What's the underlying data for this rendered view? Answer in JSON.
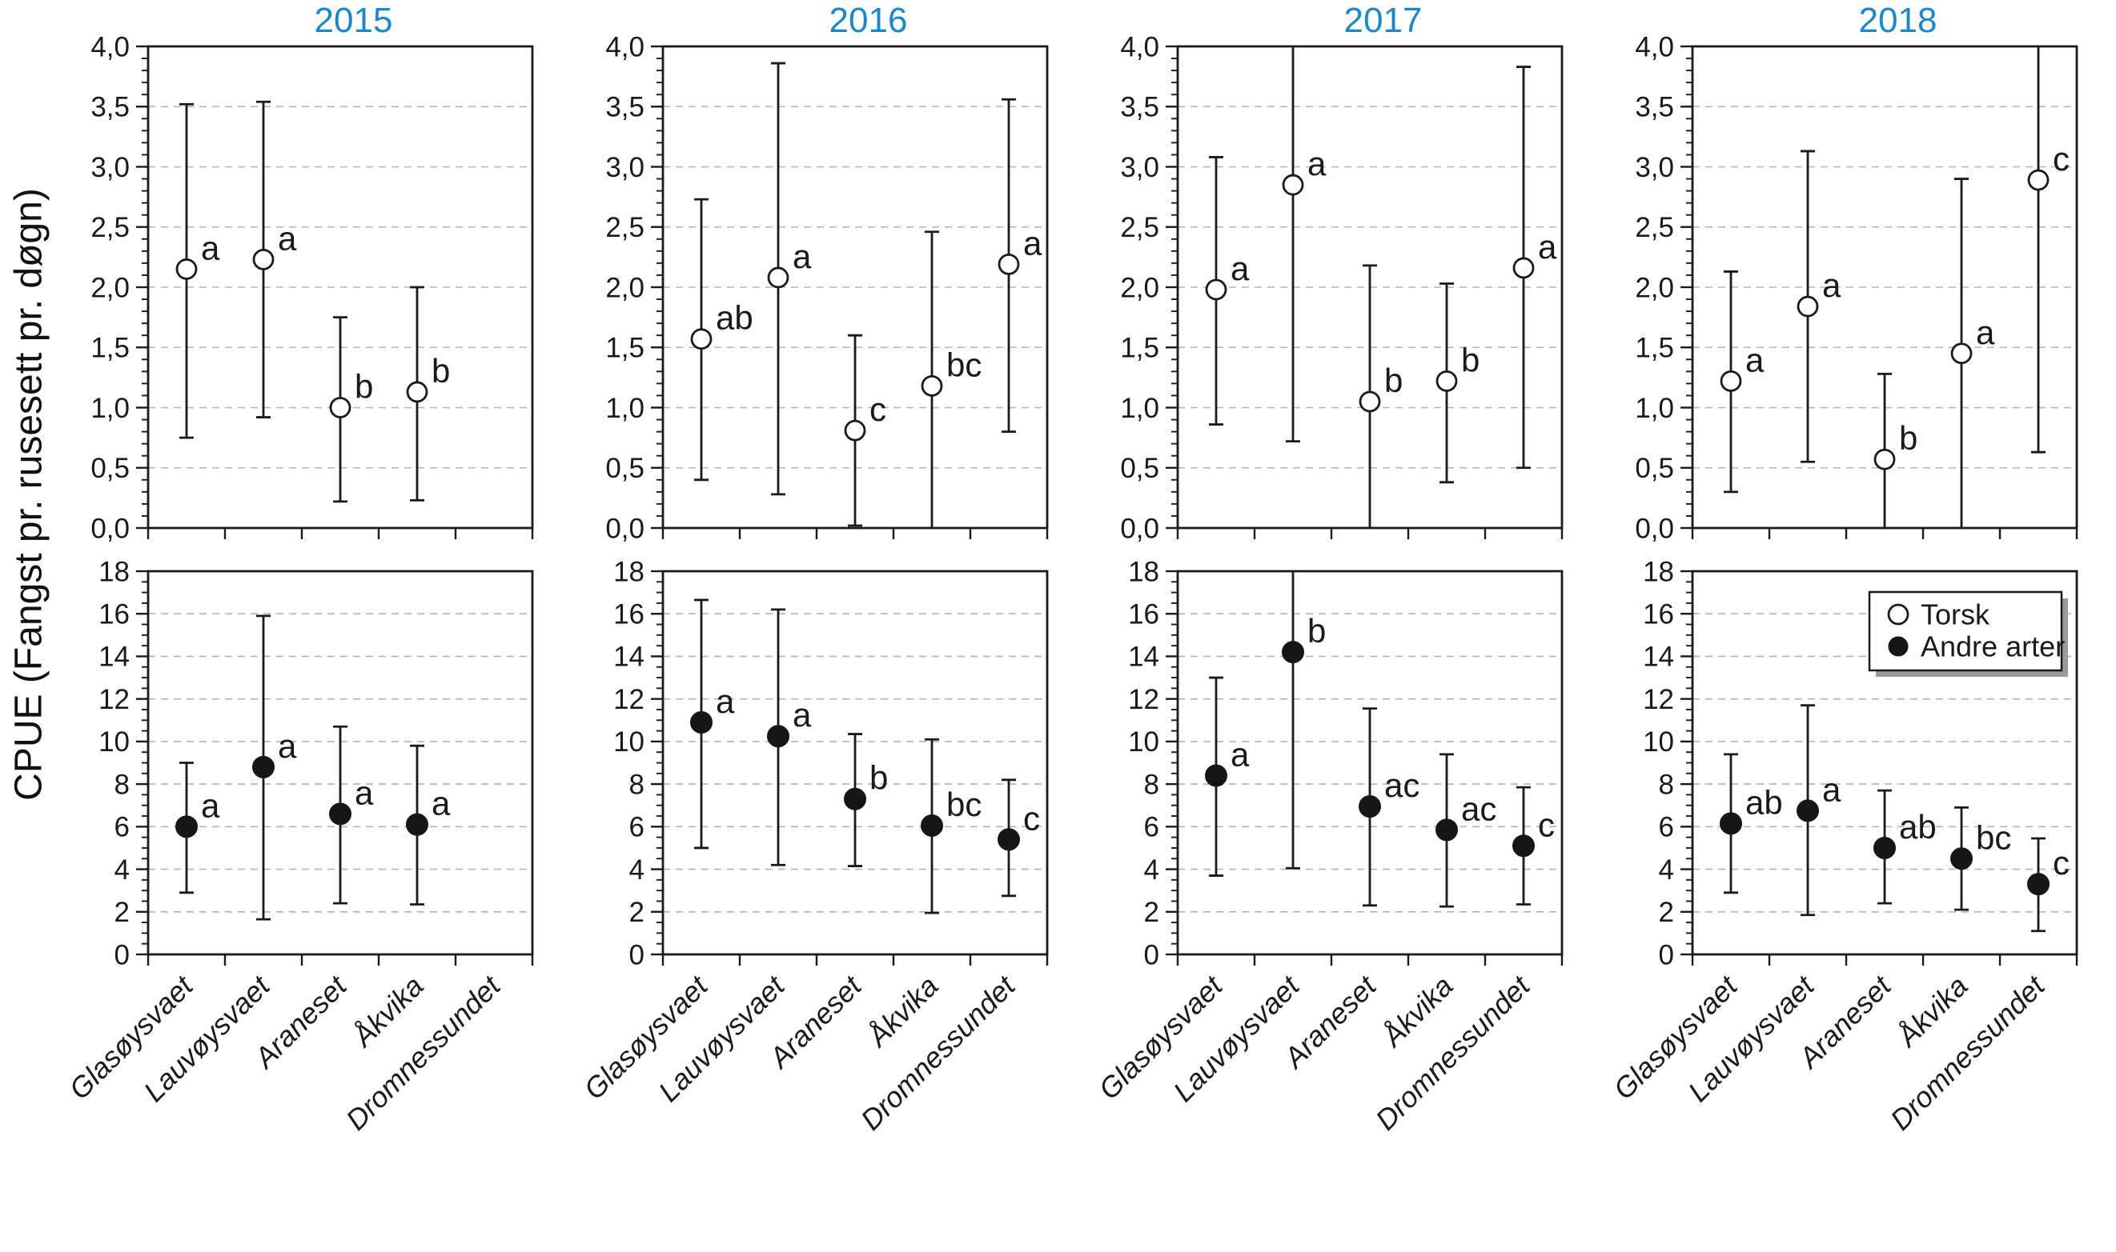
{
  "figure": {
    "ylabel": "CPUE (Fangst pr. rusesett pr. døgn)",
    "years": [
      "2015",
      "2016",
      "2017",
      "2018"
    ],
    "categories": [
      "Glasøysvaet",
      "Lauvøysvaet",
      "Araneset",
      "Åkvika",
      "Dromnessundet"
    ],
    "title_color": "#1b87c9",
    "axis_color": "#1a1a1a",
    "gridline_color": "#b3b3b3"
  },
  "legend": {
    "items": [
      {
        "label": "Torsk",
        "marker": "open-circle"
      },
      {
        "label": "Andre arter",
        "marker": "filled-circle"
      }
    ]
  },
  "chart_data": [
    {
      "type": "scatter",
      "year": "2015",
      "series": "Torsk",
      "row": "torsk",
      "ylim": [
        0,
        4
      ],
      "minor_step": 0.1,
      "minor_per_major": 5,
      "grid": true,
      "yticks": {
        "values": [
          0,
          0.5,
          1,
          1.5,
          2,
          2.5,
          3,
          3.5,
          4
        ],
        "labels": [
          "0,0",
          "0,5",
          "1,0",
          "1,5",
          "2,0",
          "2,5",
          "3,0",
          "3,5",
          "4,0"
        ]
      },
      "points": [
        {
          "cat": "Glasøysvaet",
          "y": 2.15,
          "lo": 0.75,
          "hi": 3.52,
          "sig": "a"
        },
        {
          "cat": "Lauvøysvaet",
          "y": 2.23,
          "lo": 0.92,
          "hi": 3.54,
          "sig": "a"
        },
        {
          "cat": "Araneset",
          "y": 1.0,
          "lo": 0.22,
          "hi": 1.75,
          "sig": "b"
        },
        {
          "cat": "Åkvika",
          "y": 1.13,
          "lo": 0.23,
          "hi": 2.0,
          "sig": "b"
        }
      ]
    },
    {
      "type": "scatter",
      "year": "2016",
      "series": "Torsk",
      "row": "torsk",
      "ylim": [
        0,
        4
      ],
      "minor_step": 0.1,
      "minor_per_major": 5,
      "grid": true,
      "yticks": {
        "values": [
          0,
          0.5,
          1,
          1.5,
          2,
          2.5,
          3,
          3.5,
          4
        ],
        "labels": [
          "0,0",
          "0,5",
          "1,0",
          "1,5",
          "2,0",
          "2,5",
          "3,0",
          "3,5",
          "4,0"
        ]
      },
      "points": [
        {
          "cat": "Glasøysvaet",
          "y": 1.57,
          "lo": 0.4,
          "hi": 2.73,
          "sig": "ab"
        },
        {
          "cat": "Lauvøysvaet",
          "y": 2.08,
          "lo": 0.28,
          "hi": 3.86,
          "sig": "a"
        },
        {
          "cat": "Araneset",
          "y": 0.81,
          "lo": 0.02,
          "hi": 1.6,
          "sig": "c"
        },
        {
          "cat": "Åkvika",
          "y": 1.18,
          "lo": 0,
          "hi": 2.46,
          "sig": "bc",
          "clip_lo": true
        },
        {
          "cat": "Dromnessundet",
          "y": 2.19,
          "lo": 0.8,
          "hi": 3.56,
          "sig": "a"
        }
      ]
    },
    {
      "type": "scatter",
      "year": "2017",
      "series": "Torsk",
      "row": "torsk",
      "ylim": [
        0,
        4
      ],
      "minor_step": 0.1,
      "minor_per_major": 5,
      "grid": true,
      "yticks": {
        "values": [
          0,
          0.5,
          1,
          1.5,
          2,
          2.5,
          3,
          3.5,
          4
        ],
        "labels": [
          "0,0",
          "0,5",
          "1,0",
          "1,5",
          "2,0",
          "2,5",
          "3,0",
          "3,5",
          "4,0"
        ]
      },
      "points": [
        {
          "cat": "Glasøysvaet",
          "y": 1.98,
          "lo": 0.86,
          "hi": 3.08,
          "sig": "a"
        },
        {
          "cat": "Lauvøysvaet",
          "y": 2.85,
          "lo": 0.72,
          "hi": 4.0,
          "sig": "a",
          "clip_hi": true
        },
        {
          "cat": "Araneset",
          "y": 1.05,
          "lo": 0,
          "hi": 2.18,
          "sig": "b",
          "clip_lo": true
        },
        {
          "cat": "Åkvika",
          "y": 1.22,
          "lo": 0.38,
          "hi": 2.03,
          "sig": "b"
        },
        {
          "cat": "Dromnessundet",
          "y": 2.16,
          "lo": 0.5,
          "hi": 3.83,
          "sig": "a"
        }
      ]
    },
    {
      "type": "scatter",
      "year": "2018",
      "series": "Torsk",
      "row": "torsk",
      "ylim": [
        0,
        4
      ],
      "minor_step": 0.1,
      "minor_per_major": 5,
      "grid": true,
      "yticks": {
        "values": [
          0,
          0.5,
          1,
          1.5,
          2,
          2.5,
          3,
          3.5,
          4
        ],
        "labels": [
          "0,0",
          "0,5",
          "1,0",
          "1,5",
          "2,0",
          "2,5",
          "3,0",
          "3,5",
          "4,0"
        ]
      },
      "points": [
        {
          "cat": "Glasøysvaet",
          "y": 1.22,
          "lo": 0.3,
          "hi": 2.13,
          "sig": "a"
        },
        {
          "cat": "Lauvøysvaet",
          "y": 1.84,
          "lo": 0.55,
          "hi": 3.13,
          "sig": "a"
        },
        {
          "cat": "Araneset",
          "y": 0.57,
          "lo": 0,
          "hi": 1.28,
          "sig": "b",
          "clip_lo": true
        },
        {
          "cat": "Åkvika",
          "y": 1.45,
          "lo": 0,
          "hi": 2.9,
          "sig": "a",
          "clip_lo": true
        },
        {
          "cat": "Dromnessundet",
          "y": 2.89,
          "lo": 0.63,
          "hi": 4.0,
          "sig": "c",
          "clip_hi": true
        }
      ]
    },
    {
      "type": "scatter",
      "year": "2015",
      "series": "Andre arter",
      "row": "andre",
      "ylim": [
        0,
        18
      ],
      "minor_step": 0.5,
      "minor_per_major": 4,
      "grid": true,
      "yticks": {
        "values": [
          0,
          2,
          4,
          6,
          8,
          10,
          12,
          14,
          16,
          18
        ],
        "labels": [
          "0",
          "2",
          "4",
          "6",
          "8",
          "10",
          "12",
          "14",
          "16",
          "18"
        ]
      },
      "points": [
        {
          "cat": "Glasøysvaet",
          "y": 6.0,
          "lo": 2.9,
          "hi": 9.0,
          "sig": "a"
        },
        {
          "cat": "Lauvøysvaet",
          "y": 8.8,
          "lo": 1.65,
          "hi": 15.9,
          "sig": "a"
        },
        {
          "cat": "Araneset",
          "y": 6.6,
          "lo": 2.4,
          "hi": 10.7,
          "sig": "a"
        },
        {
          "cat": "Åkvika",
          "y": 6.1,
          "lo": 2.35,
          "hi": 9.8,
          "sig": "a"
        }
      ]
    },
    {
      "type": "scatter",
      "year": "2016",
      "series": "Andre arter",
      "row": "andre",
      "ylim": [
        0,
        18
      ],
      "minor_step": 0.5,
      "minor_per_major": 4,
      "grid": true,
      "yticks": {
        "values": [
          0,
          2,
          4,
          6,
          8,
          10,
          12,
          14,
          16,
          18
        ],
        "labels": [
          "0",
          "2",
          "4",
          "6",
          "8",
          "10",
          "12",
          "14",
          "16",
          "18"
        ]
      },
      "points": [
        {
          "cat": "Glasøysvaet",
          "y": 10.9,
          "lo": 5.0,
          "hi": 16.65,
          "sig": "a"
        },
        {
          "cat": "Lauvøysvaet",
          "y": 10.25,
          "lo": 4.2,
          "hi": 16.2,
          "sig": "a"
        },
        {
          "cat": "Araneset",
          "y": 7.3,
          "lo": 4.15,
          "hi": 10.35,
          "sig": "b"
        },
        {
          "cat": "Åkvika",
          "y": 6.05,
          "lo": 1.95,
          "hi": 10.1,
          "sig": "bc"
        },
        {
          "cat": "Dromnessundet",
          "y": 5.4,
          "lo": 2.75,
          "hi": 8.2,
          "sig": "c"
        }
      ]
    },
    {
      "type": "scatter",
      "year": "2017",
      "series": "Andre arter",
      "row": "andre",
      "ylim": [
        0,
        18
      ],
      "minor_step": 0.5,
      "minor_per_major": 4,
      "grid": true,
      "yticks": {
        "values": [
          0,
          2,
          4,
          6,
          8,
          10,
          12,
          14,
          16,
          18
        ],
        "labels": [
          "0",
          "2",
          "4",
          "6",
          "8",
          "10",
          "12",
          "14",
          "16",
          "18"
        ]
      },
      "points": [
        {
          "cat": "Glasøysvaet",
          "y": 8.4,
          "lo": 3.7,
          "hi": 13.0,
          "sig": "a"
        },
        {
          "cat": "Lauvøysvaet",
          "y": 14.2,
          "lo": 4.05,
          "hi": 18.0,
          "sig": "b",
          "clip_hi": true
        },
        {
          "cat": "Araneset",
          "y": 6.95,
          "lo": 2.3,
          "hi": 11.55,
          "sig": "ac"
        },
        {
          "cat": "Åkvika",
          "y": 5.85,
          "lo": 2.25,
          "hi": 9.4,
          "sig": "ac"
        },
        {
          "cat": "Dromnessundet",
          "y": 5.1,
          "lo": 2.35,
          "hi": 7.85,
          "sig": "c"
        }
      ]
    },
    {
      "type": "scatter",
      "year": "2018",
      "series": "Andre arter",
      "row": "andre",
      "ylim": [
        0,
        18
      ],
      "minor_step": 0.5,
      "minor_per_major": 4,
      "grid": true,
      "show_legend": true,
      "yticks": {
        "values": [
          0,
          2,
          4,
          6,
          8,
          10,
          12,
          14,
          16,
          18
        ],
        "labels": [
          "0",
          "2",
          "4",
          "6",
          "8",
          "10",
          "12",
          "14",
          "16",
          "18"
        ]
      },
      "points": [
        {
          "cat": "Glasøysvaet",
          "y": 6.15,
          "lo": 2.9,
          "hi": 9.4,
          "sig": "ab"
        },
        {
          "cat": "Lauvøysvaet",
          "y": 6.75,
          "lo": 1.85,
          "hi": 11.7,
          "sig": "a"
        },
        {
          "cat": "Araneset",
          "y": 5.0,
          "lo": 2.4,
          "hi": 7.7,
          "sig": "ab"
        },
        {
          "cat": "Åkvika",
          "y": 4.5,
          "lo": 2.1,
          "hi": 6.9,
          "sig": "bc"
        },
        {
          "cat": "Dromnessundet",
          "y": 3.3,
          "lo": 1.1,
          "hi": 5.45,
          "sig": "c"
        }
      ]
    }
  ]
}
